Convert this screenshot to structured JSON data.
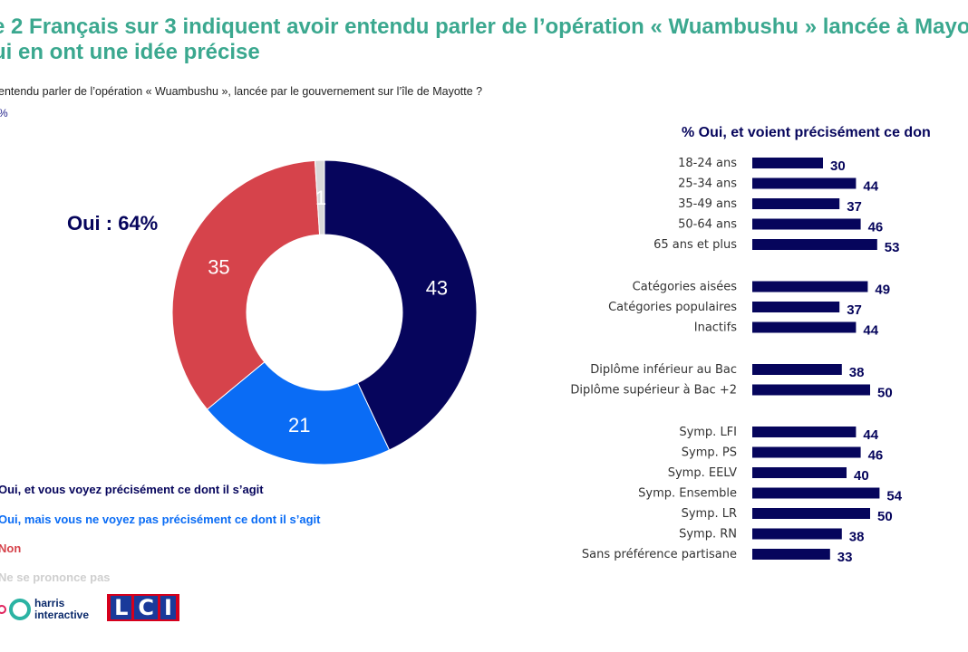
{
  "header": {
    "title_line1": "e 2 Français sur 3 indiquent avoir entendu parler de l’opération « Wuambushu » lancée à Mayotte",
    "title_line2": "ui en ont une idée précise",
    "question": "entendu parler de l’opération « Wuambushu », lancée par le gouvernement sur l’île de Mayotte ?",
    "base": "%"
  },
  "chart_data": [
    {
      "type": "pie",
      "variant": "donut",
      "annotation": "Oui : 64%",
      "categories": [
        "Oui, et vous voyez précisément ce dont il s’agit",
        "Oui, mais vous ne voyez pas précisément ce dont il s’agit",
        "Non",
        "Ne se prononce pas"
      ],
      "values": [
        43,
        21,
        35,
        1
      ],
      "colors": [
        "#06055c",
        "#0a6cf5",
        "#d6434b",
        "#d9d9d9"
      ],
      "label_colors": [
        "#ffffff",
        "#ffffff",
        "#ffffff",
        "#ffffff"
      ],
      "legend_placement": "bottom-left"
    },
    {
      "type": "bar",
      "orientation": "horizontal",
      "title": "% Oui,  et voient précisément  ce don",
      "color": "#06055c",
      "groups": [
        {
          "categories": [
            "18-24 ans",
            "25-34 ans",
            "35-49 ans",
            "50-64 ans",
            "65 ans et plus"
          ],
          "values": [
            30,
            44,
            37,
            46,
            53
          ]
        },
        {
          "categories": [
            "Catégories aisées",
            "Catégories populaires",
            "Inactifs"
          ],
          "values": [
            49,
            37,
            44
          ]
        },
        {
          "categories": [
            "Diplôme inférieur au Bac",
            "Diplôme supérieur à Bac +2"
          ],
          "values": [
            38,
            50
          ]
        },
        {
          "categories": [
            "Symp. LFI",
            "Symp. PS",
            "Symp. EELV",
            "Symp. Ensemble",
            "Symp. LR",
            "Symp. RN",
            "Sans préférence partisane"
          ],
          "values": [
            44,
            46,
            40,
            54,
            50,
            38,
            33
          ]
        }
      ]
    }
  ],
  "logos": {
    "harris_line1": "harris",
    "harris_line2": "interactive",
    "lci_letters": [
      "L",
      "C",
      "I"
    ]
  }
}
